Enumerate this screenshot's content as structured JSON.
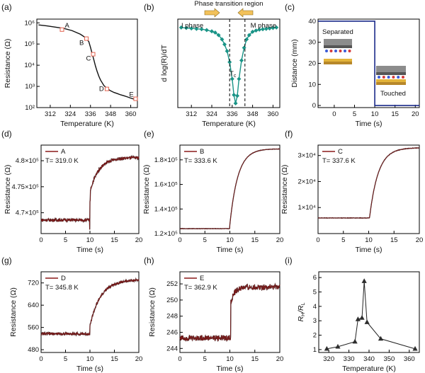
{
  "chart_data": [
    {
      "id": "a",
      "panel_label": "(a)",
      "type": "line",
      "xlabel": "Temperature (K)",
      "ylabel": "Resistance (Ω)",
      "xlim": [
        304,
        364
      ],
      "xticks": [
        312,
        324,
        336,
        348,
        360
      ],
      "yscale": "log",
      "ylim": [
        100,
        1500000
      ],
      "yticks": [
        100,
        1000,
        10000,
        100000,
        1000000
      ],
      "ytick_labels": [
        "10²",
        "10³",
        "10⁴",
        "10⁵",
        "10⁶"
      ],
      "color": "#111111",
      "series": [
        {
          "x": [
            305,
            310,
            315,
            320,
            325,
            330,
            333,
            335,
            336,
            337,
            338,
            339,
            340,
            341,
            342,
            344,
            346,
            348,
            350,
            352,
            354,
            356,
            358,
            360,
            362
          ],
          "y": [
            800000,
            720000,
            630000,
            550000,
            430000,
            290000,
            200000,
            130000,
            70000,
            35000,
            18000,
            9000,
            5000,
            3000,
            2000,
            1100,
            780,
            620,
            520,
            460,
            400,
            360,
            320,
            280,
            250
          ]
        }
      ],
      "markers": [
        {
          "label": "A",
          "x": 319.0,
          "y": 480000
        },
        {
          "label": "B",
          "x": 333.6,
          "y": 180000
        },
        {
          "label": "C",
          "x": 337.6,
          "y": 33000
        },
        {
          "label": "D",
          "x": 345.8,
          "y": 760
        },
        {
          "label": "E",
          "x": 362.9,
          "y": 260
        }
      ]
    },
    {
      "id": "b",
      "panel_label": "(b)",
      "type": "line",
      "xlabel": "Temperature (K)",
      "ylabel": "d log(R)/dT",
      "xlim": [
        304,
        364
      ],
      "xticks": [
        312,
        324,
        336,
        348,
        360
      ],
      "ylim": [
        -1,
        0.05
      ],
      "color": "#1a9487",
      "series": [
        {
          "x": [
            306,
            309,
            312,
            315,
            318,
            321,
            324,
            326,
            328,
            330,
            331.5,
            333,
            334.5,
            336,
            337,
            338,
            339,
            340,
            341.5,
            343,
            344.5,
            346,
            348,
            350,
            352,
            354,
            356,
            358,
            360,
            362
          ],
          "y": [
            -0.05,
            -0.055,
            -0.06,
            -0.065,
            -0.07,
            -0.08,
            -0.095,
            -0.11,
            -0.14,
            -0.19,
            -0.25,
            -0.33,
            -0.46,
            -0.66,
            -0.85,
            -0.95,
            -0.86,
            -0.66,
            -0.44,
            -0.29,
            -0.19,
            -0.14,
            -0.1,
            -0.085,
            -0.075,
            -0.07,
            -0.065,
            -0.06,
            -0.055,
            -0.05
          ]
        }
      ],
      "vlines": [
        334.5,
        343.5
      ],
      "annotations": {
        "top": "Phase transition region",
        "left": "I phase",
        "right": "M phase",
        "tc": "T"
      }
    },
    {
      "id": "c",
      "panel_label": "(c)",
      "type": "line",
      "xlabel": "Time (s)",
      "ylabel": "Distance (mm)",
      "xlim": [
        -4,
        21
      ],
      "xticks": [
        0,
        5,
        10,
        15,
        20
      ],
      "ylim": [
        -1,
        41
      ],
      "yticks": [
        0,
        10,
        20,
        30,
        40
      ],
      "color": "#1a2a8a",
      "series": [
        {
          "x": [
            -4,
            10,
            10,
            21
          ],
          "y": [
            40,
            40,
            0,
            0
          ]
        }
      ],
      "annotations": {
        "left_box": "Separated",
        "right_box": "Touched"
      }
    },
    {
      "id": "d",
      "panel_label": "(d)",
      "type": "line",
      "xlabel": "Time (s)",
      "ylabel": "Resistance (Ω)",
      "xlim": [
        0,
        20
      ],
      "xticks": [
        0,
        5,
        10,
        15,
        20
      ],
      "ylim": [
        466000,
        483000
      ],
      "yticks": [
        470000,
        475000,
        480000
      ],
      "ytick_labels": [
        "4.7×10⁵",
        "4.75×10⁵",
        "4.8×10⁵"
      ],
      "legend_label": "A",
      "condition": "T= 319.0 K",
      "color": "#8b1a1a",
      "series": [
        {
          "model": "step",
          "base": 468600,
          "plateau": 480600,
          "t0": 10,
          "jump": 0.45,
          "tau": 1.8,
          "noise": 300,
          "dip": 2000
        }
      ]
    },
    {
      "id": "e",
      "panel_label": "(e)",
      "type": "line",
      "xlabel": "Time (s)",
      "ylabel": "Resistance (Ω)",
      "xlim": [
        0,
        20
      ],
      "xticks": [
        0,
        5,
        10,
        15,
        20
      ],
      "ylim": [
        120000,
        192000
      ],
      "yticks": [
        120000,
        140000,
        160000,
        180000
      ],
      "ytick_labels": [
        "1.2×10⁵",
        "1.4×10⁵",
        "1.6×10⁵",
        "1.8×10⁵"
      ],
      "legend_label": "B",
      "condition": "T= 333.6 K",
      "color": "#8b1a1a",
      "series": [
        {
          "model": "step",
          "base": 124000,
          "plateau": 189000,
          "t0": 10,
          "jump": 0.05,
          "tau": 1.6,
          "noise": 150,
          "dip": 0
        }
      ]
    },
    {
      "id": "f",
      "panel_label": "(f)",
      "type": "line",
      "xlabel": "Time (s)",
      "ylabel": "Resistance (Ω)",
      "xlim": [
        0,
        20
      ],
      "xticks": [
        0,
        5,
        10,
        15,
        20
      ],
      "ylim": [
        0,
        34000
      ],
      "yticks": [
        10000,
        20000,
        30000
      ],
      "ytick_labels": [
        "1×10⁴",
        "2×10⁴",
        "3×10⁴"
      ],
      "legend_label": "C",
      "condition": "T= 337.6 K",
      "color": "#8b1a1a",
      "series": [
        {
          "model": "step",
          "base": 6000,
          "plateau": 33000,
          "t0": 10.2,
          "jump": 0.02,
          "tau": 1.7,
          "noise": 80,
          "dip": 0
        }
      ]
    },
    {
      "id": "g",
      "panel_label": "(g)",
      "type": "line",
      "xlabel": "Time (s)",
      "ylabel": "Resistance (Ω)",
      "xlim": [
        0,
        20
      ],
      "xticks": [
        0,
        5,
        10,
        15,
        20
      ],
      "ylim": [
        470,
        760
      ],
      "yticks": [
        480,
        560,
        640,
        720
      ],
      "legend_label": "D",
      "condition": "T= 345.8 K",
      "color": "#8b1a1a",
      "series": [
        {
          "model": "step",
          "base": 537,
          "plateau": 732,
          "t0": 10,
          "jump": 0.15,
          "tau": 2.2,
          "noise": 5,
          "dip": 0
        }
      ]
    },
    {
      "id": "h",
      "panel_label": "(h)",
      "type": "line",
      "xlabel": "Time (s)",
      "ylabel": "Resistance (Ω)",
      "xlim": [
        0,
        20
      ],
      "xticks": [
        0,
        5,
        10,
        15,
        20
      ],
      "ylim": [
        243.5,
        253.5
      ],
      "yticks": [
        244,
        246,
        248,
        250,
        252
      ],
      "legend_label": "E",
      "condition": "T= 362.9 K",
      "color": "#8b1a1a",
      "series": [
        {
          "model": "step",
          "base": 245.3,
          "plateau": 251.6,
          "t0": 10.2,
          "jump": 0.7,
          "tau": 0.8,
          "noise": 0.35,
          "dip": 0
        }
      ]
    },
    {
      "id": "i",
      "panel_label": "(i)",
      "type": "line",
      "xlabel": "Temperature (K)",
      "ylabel": "R /R",
      "xlim": [
        315,
        365
      ],
      "xticks": [
        320,
        330,
        340,
        350,
        360
      ],
      "ylim": [
        0.8,
        6.4
      ],
      "yticks": [
        1,
        2,
        3,
        4,
        5,
        6
      ],
      "color": "#222222",
      "series": [
        {
          "x": [
            319.0,
            324.5,
            333.0,
            334.5,
            336.5,
            337.6,
            339.0,
            345.8,
            362.9
          ],
          "y": [
            1.05,
            1.2,
            1.55,
            3.1,
            3.2,
            5.75,
            2.9,
            1.75,
            1.05
          ]
        }
      ]
    }
  ]
}
